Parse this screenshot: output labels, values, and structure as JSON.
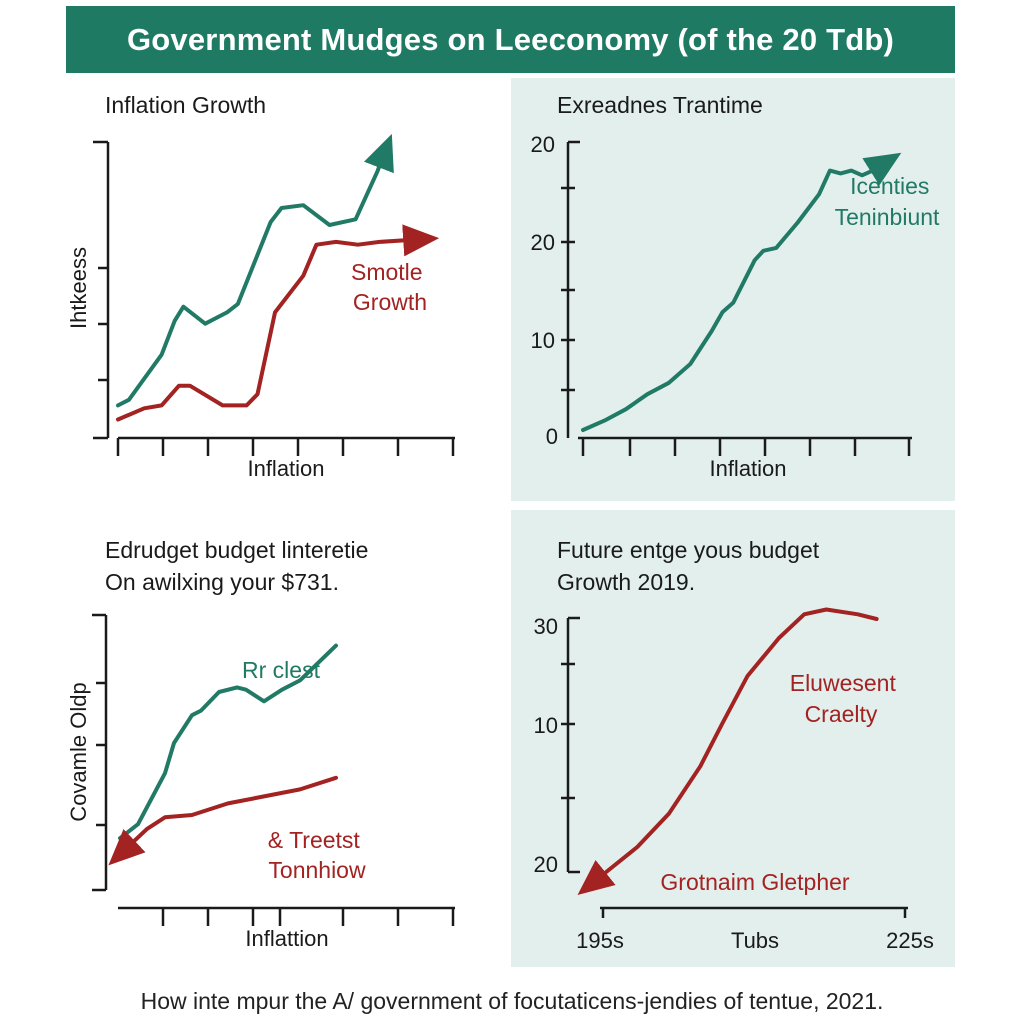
{
  "banner_title": "Government Mudges on Leeconomy (of the 20 Tdb)",
  "footer_caption": "How inte mpur the A/ government of focutaticens-jendies of tentue, 2021.",
  "colors": {
    "green": "#217a66",
    "red": "#a32222",
    "banner": "#1f7a64",
    "panel_bg": "#e3efed"
  },
  "chart_data": [
    {
      "type": "line",
      "title": "Inflation Growth",
      "xlabel": "Inflation",
      "ylabel": "Ihtkeess",
      "xlim": [
        0,
        15
      ],
      "ylim": [
        0,
        100
      ],
      "series": [
        {
          "name": "green",
          "color": "#217a66",
          "arrow": true,
          "points": [
            [
              0,
              8
            ],
            [
              0.5,
              10
            ],
            [
              2,
              26
            ],
            [
              2.6,
              38
            ],
            [
              3,
              43
            ],
            [
              4,
              37
            ],
            [
              5,
              41
            ],
            [
              5.5,
              44
            ],
            [
              7,
              73
            ],
            [
              7.5,
              78
            ],
            [
              8.5,
              79
            ],
            [
              9.7,
              72
            ],
            [
              10.9,
              74
            ],
            [
              11.9,
              91
            ],
            [
              12.3,
              99
            ]
          ]
        },
        {
          "name": "red",
          "color": "#a32222",
          "arrow": true,
          "points": [
            [
              0,
              3
            ],
            [
              1.2,
              7
            ],
            [
              2,
              8
            ],
            [
              2.8,
              15
            ],
            [
              3.3,
              15
            ],
            [
              4.8,
              8
            ],
            [
              5.9,
              8
            ],
            [
              6.4,
              12
            ],
            [
              7.2,
              41
            ],
            [
              8.5,
              54
            ],
            [
              9.1,
              65
            ],
            [
              10,
              66
            ],
            [
              11,
              65
            ],
            [
              12,
              66
            ],
            [
              14,
              67
            ]
          ]
        }
      ],
      "annotations": [
        {
          "text": "Smotle\nGrowth",
          "color": "#a32222"
        }
      ]
    },
    {
      "type": "line",
      "title": "Exreadnes Trantime",
      "xlabel": "Inflation",
      "yticks": [
        "20",
        "20",
        "10",
        "0"
      ],
      "xlim": [
        0,
        15
      ],
      "ylim": [
        0,
        30
      ],
      "series": [
        {
          "name": "green",
          "color": "#217a66",
          "arrow": true,
          "points": [
            [
              0,
              0
            ],
            [
              1,
              1
            ],
            [
              2,
              2.2
            ],
            [
              3,
              3.8
            ],
            [
              4,
              5
            ],
            [
              5,
              7
            ],
            [
              6,
              10.5
            ],
            [
              6.5,
              12.5
            ],
            [
              7,
              13.5
            ],
            [
              8,
              18
            ],
            [
              8.4,
              19
            ],
            [
              9,
              19.3
            ],
            [
              10,
              22
            ],
            [
              11,
              25
            ],
            [
              11.5,
              27.5
            ],
            [
              12,
              27.2
            ],
            [
              12.5,
              27.5
            ],
            [
              13,
              27
            ],
            [
              13.5,
              27.5
            ],
            [
              14.2,
              28.5
            ]
          ]
        }
      ],
      "annotations": [
        {
          "text": "Icenties\nTeninbiunt",
          "color": "#217a66"
        }
      ]
    },
    {
      "type": "line",
      "title": "Edrudget budget linteretie",
      "subtitle": "On awilxing your $731.",
      "xlabel": "Inflattion",
      "ylabel": "Covamle Oldp",
      "xlim": [
        0,
        15
      ],
      "ylim": [
        0,
        100
      ],
      "series": [
        {
          "name": "green",
          "color": "#217a66",
          "arrow": false,
          "points": [
            [
              0,
              12
            ],
            [
              1,
              18
            ],
            [
              2.5,
              40
            ],
            [
              3,
              53
            ],
            [
              4,
              65
            ],
            [
              4.5,
              67
            ],
            [
              5.5,
              75
            ],
            [
              6.5,
              77
            ],
            [
              7,
              76
            ],
            [
              8,
              71
            ],
            [
              9,
              76
            ],
            [
              10,
              80
            ],
            [
              12,
              95
            ]
          ]
        },
        {
          "name": "red",
          "color": "#a32222",
          "arrow": true,
          "points": [
            [
              12,
              38
            ],
            [
              10,
              33
            ],
            [
              8,
              30
            ],
            [
              6,
              27
            ],
            [
              4,
              22
            ],
            [
              2.5,
              21
            ],
            [
              1.5,
              16
            ],
            [
              0,
              5
            ]
          ]
        }
      ],
      "annotations": [
        {
          "text": "Rr clest",
          "color": "#217a66"
        },
        {
          "text": "& Treetst\nTonnhiow",
          "color": "#a32222"
        }
      ]
    },
    {
      "type": "line",
      "title": "Future entge yous budget",
      "subtitle": "Growth 2019.",
      "xticks": [
        "195s",
        "Tubs",
        "225s"
      ],
      "yticks": [
        "30",
        "10",
        "20"
      ],
      "xlim": [
        0,
        10
      ],
      "ylim": [
        0,
        30
      ],
      "series": [
        {
          "name": "red",
          "color": "#a32222",
          "arrow": true,
          "points": [
            [
              9.1,
              28
            ],
            [
              8.5,
              28.5
            ],
            [
              7.5,
              29
            ],
            [
              6.8,
              28.5
            ],
            [
              6,
              26
            ],
            [
              5,
              22
            ],
            [
              4.2,
              17
            ],
            [
              3.5,
              12.5
            ],
            [
              2.5,
              7.5
            ],
            [
              1.5,
              4
            ],
            [
              0,
              0
            ]
          ]
        }
      ],
      "annotations": [
        {
          "text": "Eluwesent\nCraelty",
          "color": "#a32222"
        },
        {
          "text": "Grotnaim Gletpher",
          "color": "#a32222"
        }
      ]
    }
  ]
}
